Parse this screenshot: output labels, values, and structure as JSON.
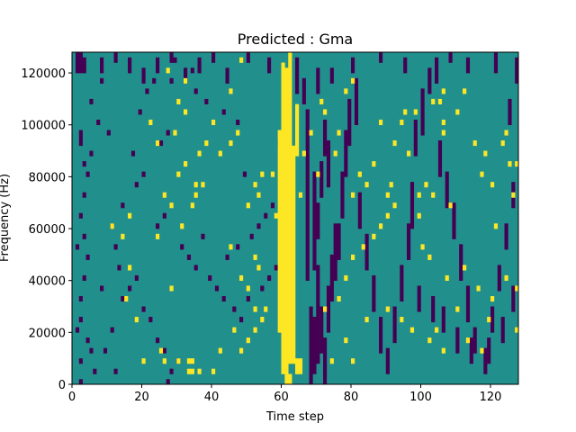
{
  "chart_data": {
    "type": "heatmap",
    "title": "Predicted : Gma",
    "xlabel": "Time step",
    "ylabel": "Frequency (Hz)",
    "xlim": [
      0,
      128
    ],
    "ylim": [
      0,
      128000
    ],
    "x_ticks": [
      0,
      20,
      40,
      60,
      80,
      100,
      120
    ],
    "y_ticks": [
      0,
      20000,
      40000,
      60000,
      80000,
      100000,
      120000
    ],
    "grid": false,
    "colormap": "viridis",
    "colors": {
      "background": "#21908d",
      "low": "#440154",
      "high": "#fde725"
    },
    "n_time_steps": 128,
    "n_freq_bins": 64,
    "freq_bin_width_hz": 2000,
    "background_value": 0.5,
    "high_runs": [
      [
        59,
        10,
        48
      ],
      [
        60,
        2,
        61
      ],
      [
        61,
        2,
        60
      ],
      [
        62,
        4,
        63
      ],
      [
        63,
        4,
        45
      ],
      [
        64,
        2,
        4
      ],
      [
        65,
        2,
        4
      ],
      [
        64,
        44,
        53
      ],
      [
        61,
        0,
        1
      ],
      [
        62,
        0,
        1
      ],
      [
        20,
        4,
        4
      ],
      [
        26,
        4,
        4
      ],
      [
        30,
        4,
        4
      ],
      [
        33,
        2,
        2
      ],
      [
        33,
        4,
        4
      ],
      [
        34,
        2,
        2
      ],
      [
        34,
        4,
        4
      ],
      [
        36,
        2,
        2
      ],
      [
        40,
        2,
        2
      ],
      [
        42,
        6,
        6
      ],
      [
        46,
        10,
        10
      ],
      [
        48,
        6,
        6
      ],
      [
        50,
        8,
        8
      ],
      [
        52,
        10,
        10
      ],
      [
        52,
        14,
        14
      ],
      [
        54,
        12,
        12
      ],
      [
        55,
        14,
        14
      ],
      [
        45,
        26,
        26
      ],
      [
        48,
        20,
        20
      ],
      [
        50,
        18,
        18
      ],
      [
        52,
        24,
        24
      ],
      [
        53,
        22,
        22
      ],
      [
        35,
        36,
        36
      ],
      [
        37,
        38,
        38
      ],
      [
        42,
        44,
        44
      ],
      [
        47,
        48,
        48
      ],
      [
        50,
        34,
        34
      ],
      [
        53,
        36,
        36
      ],
      [
        57,
        40,
        40
      ],
      [
        36,
        44,
        44
      ],
      [
        38,
        46,
        46
      ],
      [
        45,
        56,
        56
      ],
      [
        45,
        46,
        46
      ],
      [
        30,
        54,
        54
      ],
      [
        32,
        58,
        58
      ],
      [
        27,
        60,
        60
      ],
      [
        60,
        58,
        58
      ],
      [
        32,
        52,
        52
      ],
      [
        58,
        32,
        32
      ],
      [
        65,
        36,
        36
      ],
      [
        70,
        40,
        40
      ],
      [
        75,
        44,
        44
      ],
      [
        76,
        48,
        48
      ],
      [
        72,
        52,
        52
      ],
      [
        78,
        56,
        56
      ],
      [
        80,
        58,
        58
      ],
      [
        80,
        36,
        36
      ],
      [
        82,
        40,
        40
      ],
      [
        84,
        38,
        38
      ],
      [
        86,
        42,
        42
      ],
      [
        90,
        36,
        36
      ],
      [
        91,
        38,
        38
      ],
      [
        92,
        46,
        46
      ],
      [
        94,
        50,
        50
      ],
      [
        95,
        52,
        52
      ],
      [
        99,
        32,
        32
      ],
      [
        99,
        36,
        36
      ],
      [
        101,
        38,
        38
      ],
      [
        103,
        54,
        54
      ],
      [
        105,
        54,
        54
      ],
      [
        106,
        48,
        48
      ],
      [
        106,
        50,
        50
      ],
      [
        106,
        56,
        56
      ],
      [
        110,
        52,
        52
      ],
      [
        112,
        56,
        56
      ],
      [
        115,
        46,
        46
      ],
      [
        117,
        40,
        40
      ],
      [
        118,
        44,
        44
      ],
      [
        120,
        38,
        38
      ],
      [
        123,
        46,
        46
      ],
      [
        124,
        48,
        48
      ],
      [
        125,
        42,
        42
      ],
      [
        126,
        36,
        36
      ],
      [
        127,
        42,
        42
      ],
      [
        88,
        50,
        50
      ],
      [
        96,
        44,
        44
      ],
      [
        98,
        52,
        52
      ],
      [
        103,
        36,
        36
      ],
      [
        108,
        34,
        34
      ],
      [
        16,
        22,
        22
      ],
      [
        15,
        16,
        16
      ],
      [
        28,
        18,
        18
      ],
      [
        18,
        12,
        12
      ],
      [
        25,
        6,
        6
      ],
      [
        32,
        42,
        42
      ],
      [
        35,
        38,
        38
      ],
      [
        24,
        28,
        28
      ],
      [
        31,
        30,
        30
      ],
      [
        28,
        34,
        34
      ],
      [
        34,
        34,
        34
      ],
      [
        26,
        36,
        36
      ],
      [
        30,
        40,
        40
      ],
      [
        24,
        46,
        46
      ],
      [
        22,
        50,
        50
      ],
      [
        29,
        48,
        48
      ],
      [
        11,
        30,
        30
      ],
      [
        14,
        28,
        28
      ],
      [
        16,
        32,
        32
      ],
      [
        48,
        62,
        62
      ],
      [
        52,
        38,
        38
      ],
      [
        54,
        40,
        40
      ],
      [
        40,
        50,
        50
      ],
      [
        66,
        44,
        44
      ],
      [
        68,
        48,
        48
      ],
      [
        71,
        54,
        54
      ],
      [
        72,
        14,
        14
      ],
      [
        76,
        16,
        16
      ],
      [
        78,
        20,
        20
      ],
      [
        80,
        24,
        24
      ],
      [
        83,
        26,
        26
      ],
      [
        86,
        28,
        28
      ],
      [
        88,
        30,
        30
      ],
      [
        90,
        32,
        32
      ],
      [
        92,
        34,
        34
      ],
      [
        100,
        26,
        26
      ],
      [
        102,
        24,
        24
      ],
      [
        107,
        20,
        20
      ],
      [
        112,
        22,
        22
      ],
      [
        116,
        18,
        18
      ],
      [
        120,
        16,
        16
      ],
      [
        121,
        30,
        30
      ],
      [
        124,
        20,
        20
      ],
      [
        102,
        8,
        8
      ],
      [
        104,
        10,
        10
      ],
      [
        106,
        6,
        6
      ],
      [
        113,
        8,
        8
      ],
      [
        117,
        6,
        6
      ],
      [
        90,
        14,
        14
      ],
      [
        94,
        12,
        12
      ],
      [
        97,
        10,
        10
      ],
      [
        84,
        12,
        12
      ],
      [
        78,
        8,
        8
      ],
      [
        74,
        4,
        4
      ],
      [
        80,
        4,
        4
      ],
      [
        127,
        18,
        18
      ],
      [
        127,
        10,
        10
      ],
      [
        119,
        12,
        12
      ],
      [
        110,
        14,
        14
      ]
    ],
    "low_runs": [
      [
        1,
        60,
        63
      ],
      [
        2,
        60,
        63
      ],
      [
        3,
        60,
        62
      ],
      [
        2,
        46,
        48
      ],
      [
        4,
        40,
        40
      ],
      [
        3,
        36,
        36
      ],
      [
        2,
        32,
        32
      ],
      [
        3,
        28,
        28
      ],
      [
        1,
        26,
        26
      ],
      [
        4,
        24,
        24
      ],
      [
        3,
        20,
        20
      ],
      [
        2,
        16,
        16
      ],
      [
        2,
        12,
        12
      ],
      [
        1,
        10,
        10
      ],
      [
        4,
        8,
        8
      ],
      [
        5,
        6,
        6
      ],
      [
        2,
        4,
        4
      ],
      [
        6,
        2,
        2
      ],
      [
        2,
        0,
        0
      ],
      [
        5,
        44,
        44
      ],
      [
        3,
        42,
        42
      ],
      [
        7,
        50,
        50
      ],
      [
        10,
        48,
        48
      ],
      [
        5,
        54,
        54
      ],
      [
        8,
        58,
        58
      ],
      [
        11,
        30,
        30
      ],
      [
        12,
        26,
        26
      ],
      [
        13,
        22,
        22
      ],
      [
        8,
        18,
        18
      ],
      [
        11,
        10,
        10
      ],
      [
        9,
        6,
        6
      ],
      [
        12,
        2,
        2
      ],
      [
        14,
        16,
        16
      ],
      [
        16,
        18,
        18
      ],
      [
        18,
        20,
        20
      ],
      [
        20,
        14,
        14
      ],
      [
        22,
        12,
        12
      ],
      [
        24,
        8,
        8
      ],
      [
        26,
        6,
        6
      ],
      [
        28,
        2,
        2
      ],
      [
        30,
        4,
        4
      ],
      [
        27,
        0,
        0
      ],
      [
        25,
        46,
        46
      ],
      [
        27,
        48,
        48
      ],
      [
        19,
        52,
        52
      ],
      [
        21,
        56,
        56
      ],
      [
        23,
        58,
        58
      ],
      [
        17,
        44,
        44
      ],
      [
        14,
        34,
        34
      ],
      [
        18,
        38,
        38
      ],
      [
        20,
        40,
        40
      ],
      [
        24,
        30,
        30
      ],
      [
        26,
        32,
        32
      ],
      [
        31,
        26,
        26
      ],
      [
        33,
        24,
        24
      ],
      [
        35,
        22,
        22
      ],
      [
        37,
        28,
        28
      ],
      [
        39,
        20,
        20
      ],
      [
        41,
        18,
        18
      ],
      [
        43,
        16,
        16
      ],
      [
        46,
        14,
        14
      ],
      [
        48,
        12,
        12
      ],
      [
        50,
        16,
        16
      ],
      [
        54,
        18,
        18
      ],
      [
        56,
        20,
        20
      ],
      [
        58,
        22,
        22
      ],
      [
        44,
        24,
        24
      ],
      [
        47,
        26,
        26
      ],
      [
        51,
        28,
        28
      ],
      [
        53,
        30,
        30
      ],
      [
        55,
        32,
        32
      ],
      [
        57,
        34,
        34
      ],
      [
        61,
        36,
        36
      ],
      [
        49,
        40,
        40
      ],
      [
        60,
        42,
        42
      ],
      [
        59,
        46,
        46
      ],
      [
        47,
        50,
        50
      ],
      [
        43,
        52,
        52
      ],
      [
        38,
        54,
        54
      ],
      [
        35,
        56,
        56
      ],
      [
        28,
        58,
        58
      ],
      [
        29,
        62,
        62
      ],
      [
        34,
        60,
        60
      ],
      [
        67,
        20,
        52
      ],
      [
        68,
        0,
        14
      ],
      [
        69,
        2,
        12
      ],
      [
        70,
        4,
        22
      ],
      [
        71,
        6,
        14
      ],
      [
        72,
        0,
        8
      ],
      [
        73,
        10,
        18
      ],
      [
        74,
        16,
        24
      ],
      [
        75,
        20,
        30
      ],
      [
        69,
        22,
        40
      ],
      [
        70,
        28,
        34
      ],
      [
        71,
        36,
        42
      ],
      [
        72,
        44,
        50
      ],
      [
        73,
        38,
        46
      ],
      [
        76,
        24,
        30
      ],
      [
        77,
        32,
        40
      ],
      [
        78,
        40,
        48
      ],
      [
        79,
        46,
        54
      ],
      [
        81,
        50,
        58
      ],
      [
        82,
        30,
        36
      ],
      [
        84,
        22,
        28
      ],
      [
        86,
        14,
        20
      ],
      [
        88,
        6,
        12
      ],
      [
        90,
        2,
        6
      ],
      [
        92,
        8,
        14
      ],
      [
        94,
        16,
        22
      ],
      [
        96,
        24,
        30
      ],
      [
        97,
        30,
        38
      ],
      [
        98,
        44,
        50
      ],
      [
        100,
        48,
        56
      ],
      [
        102,
        56,
        60
      ],
      [
        104,
        58,
        62
      ],
      [
        105,
        40,
        46
      ],
      [
        107,
        34,
        40
      ],
      [
        109,
        28,
        34
      ],
      [
        111,
        20,
        26
      ],
      [
        113,
        12,
        18
      ],
      [
        115,
        6,
        10
      ],
      [
        118,
        2,
        6
      ],
      [
        120,
        10,
        14
      ],
      [
        122,
        18,
        22
      ],
      [
        124,
        26,
        30
      ],
      [
        126,
        34,
        38
      ],
      [
        125,
        50,
        54
      ],
      [
        127,
        58,
        62
      ],
      [
        121,
        60,
        63
      ],
      [
        113,
        60,
        62
      ],
      [
        108,
        62,
        63
      ],
      [
        95,
        60,
        62
      ],
      [
        88,
        62,
        63
      ],
      [
        80,
        60,
        62
      ],
      [
        74,
        58,
        60
      ],
      [
        70,
        56,
        60
      ],
      [
        66,
        54,
        58
      ],
      [
        64,
        56,
        62
      ],
      [
        56,
        60,
        62
      ],
      [
        50,
        62,
        63
      ],
      [
        44,
        58,
        60
      ],
      [
        40,
        62,
        63
      ],
      [
        36,
        60,
        62
      ],
      [
        32,
        58,
        60
      ],
      [
        28,
        62,
        63
      ],
      [
        24,
        60,
        62
      ],
      [
        20,
        58,
        60
      ],
      [
        16,
        60,
        62
      ],
      [
        12,
        62,
        63
      ],
      [
        8,
        60,
        62
      ],
      [
        99,
        14,
        18
      ],
      [
        103,
        12,
        16
      ],
      [
        106,
        10,
        14
      ],
      [
        110,
        6,
        10
      ],
      [
        114,
        4,
        8
      ],
      [
        119,
        4,
        8
      ],
      [
        123,
        8,
        12
      ],
      [
        126,
        14,
        18
      ]
    ]
  }
}
